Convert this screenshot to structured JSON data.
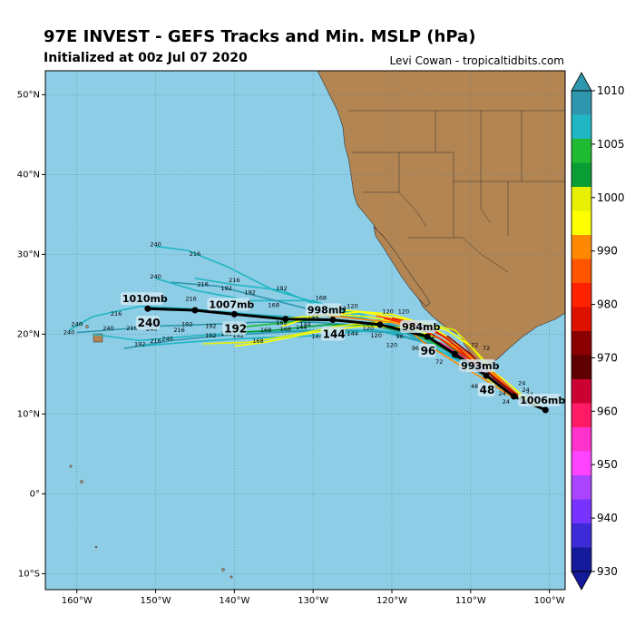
{
  "header": {
    "title": "97E INVEST - GEFS Tracks and Min. MSLP (hPa)",
    "subtitle": "Initialized at 00z Jul 07 2020",
    "credit": "Levi Cowan - tropicaltidbits.com"
  },
  "map": {
    "lon_range": [
      -164,
      -98
    ],
    "lat_range": [
      -12,
      53
    ],
    "lon_ticks": [
      "160°W",
      "150°W",
      "140°W",
      "130°W",
      "120°W",
      "110°W",
      "100°W"
    ],
    "lat_ticks": [
      "10°S",
      "0°",
      "10°N",
      "20°N",
      "30°N",
      "40°N",
      "50°N"
    ],
    "colors": {
      "ocean": "#8ecde6",
      "land": "#b38552",
      "grid": "#4f7a8f",
      "mean_track": "#000000"
    }
  },
  "colorbar": {
    "ticks": [
      "1010",
      "1005",
      "1000",
      "990",
      "980",
      "970",
      "960",
      "950",
      "940",
      "930"
    ],
    "bands": [
      "#2f97ad",
      "#20b6c3",
      "#1fbb33",
      "#0a9d33",
      "#e6f000",
      "#ffff00",
      "#ff8800",
      "#ff5500",
      "#ff2200",
      "#dd1100",
      "#8a0000",
      "#5e0000",
      "#cc0033",
      "#ff1a66",
      "#ff33cc",
      "#ff44ff",
      "#aa44ff",
      "#7733ff",
      "#3c2bd6",
      "#141a9a"
    ]
  },
  "mean_track": {
    "points": [
      {
        "lon": -100.5,
        "lat": 10.5
      },
      {
        "lon": -104.5,
        "lat": 12.2
      },
      {
        "lon": -108.0,
        "lat": 14.8
      },
      {
        "lon": -112.0,
        "lat": 17.5
      },
      {
        "lon": -115.5,
        "lat": 19.7
      },
      {
        "lon": -121.5,
        "lat": 21.2
      },
      {
        "lon": -127.5,
        "lat": 21.8
      },
      {
        "lon": -133.5,
        "lat": 21.9
      },
      {
        "lon": -140.0,
        "lat": 22.5
      },
      {
        "lon": -145.0,
        "lat": 23.0
      },
      {
        "lon": -151.0,
        "lat": 23.2
      }
    ],
    "labels": [
      {
        "pressure": "1006mb",
        "hour": "",
        "lon": -100.5,
        "lat": 10.5
      },
      {
        "pressure": "993mb",
        "hour": "48",
        "lon": -108.0,
        "lat": 14.8
      },
      {
        "pressure": "984mb",
        "hour": "96",
        "lon": -115.5,
        "lat": 19.7
      },
      {
        "pressure": "998mb",
        "hour": "144",
        "lon": -127.5,
        "lat": 21.8
      },
      {
        "pressure": "1007mb",
        "hour": "192",
        "lon": -140.0,
        "lat": 22.5
      },
      {
        "pressure": "1010mb",
        "hour": "240",
        "lon": -151.0,
        "lat": 23.2
      }
    ]
  },
  "member_tracks": [
    {
      "color": "#20b6c3",
      "points": [
        [
          -104.5,
          12.2
        ],
        [
          -108.5,
          15
        ],
        [
          -115,
          18.5
        ],
        [
          -122,
          22
        ],
        [
          -128,
          23.5
        ],
        [
          -135,
          25.5
        ],
        [
          -141,
          28.5
        ],
        [
          -146,
          30.5
        ],
        [
          -150,
          31
        ]
      ]
    },
    {
      "color": "#20b6c3",
      "points": [
        [
          -104.5,
          12.2
        ],
        [
          -108.5,
          15
        ],
        [
          -115,
          19
        ],
        [
          -122,
          21.5
        ],
        [
          -128,
          23
        ],
        [
          -134,
          25.5
        ],
        [
          -140,
          26.2
        ],
        [
          -145,
          27.0
        ]
      ]
    },
    {
      "color": "#20b6c3",
      "points": [
        [
          -104.5,
          12.2
        ],
        [
          -109,
          15.5
        ],
        [
          -116,
          19.5
        ],
        [
          -122,
          21.5
        ],
        [
          -130,
          24.2
        ],
        [
          -138,
          24.2
        ],
        [
          -145,
          25.5
        ],
        [
          -150,
          27
        ]
      ]
    },
    {
      "color": "#2f97ad",
      "points": [
        [
          -104.5,
          12.2
        ],
        [
          -108,
          15
        ],
        [
          -114,
          19.5
        ],
        [
          -121,
          21.5
        ],
        [
          -128,
          22.5
        ],
        [
          -136,
          24.5
        ],
        [
          -142,
          26
        ],
        [
          -148,
          26.5
        ]
      ]
    },
    {
      "color": "#20b6c3",
      "points": [
        [
          -105,
          12.5
        ],
        [
          -109,
          15.5
        ],
        [
          -115,
          19.5
        ],
        [
          -122,
          21.2
        ],
        [
          -130,
          22
        ],
        [
          -138,
          22.5
        ],
        [
          -146,
          23.2
        ],
        [
          -152,
          23.5
        ],
        [
          -158,
          22.2
        ],
        [
          -161,
          20.5
        ]
      ]
    },
    {
      "color": "#2f97ad",
      "points": [
        [
          -105,
          12.5
        ],
        [
          -109,
          15.2
        ],
        [
          -115,
          19.2
        ],
        [
          -122,
          21.0
        ],
        [
          -130,
          21.5
        ],
        [
          -137,
          21.5
        ],
        [
          -144,
          21.2
        ],
        [
          -150,
          21.0
        ],
        [
          -156,
          20.5
        ],
        [
          -160,
          20.2
        ]
      ]
    },
    {
      "color": "#20b6c3",
      "points": [
        [
          -105,
          12.5
        ],
        [
          -109,
          15.5
        ],
        [
          -116,
          19
        ],
        [
          -122,
          20.5
        ],
        [
          -131,
          20.5
        ],
        [
          -139,
          20.2
        ],
        [
          -145,
          19.8
        ],
        [
          -152,
          19.2
        ],
        [
          -158,
          20.0
        ]
      ]
    },
    {
      "color": "#2f97ad",
      "points": [
        [
          -104.5,
          12.3
        ],
        [
          -109,
          15.2
        ],
        [
          -114,
          18.5
        ],
        [
          -120,
          20.2
        ],
        [
          -127,
          20.5
        ],
        [
          -135,
          20.2
        ],
        [
          -142,
          19.8
        ],
        [
          -148,
          19.2
        ],
        [
          -154,
          18.2
        ]
      ]
    },
    {
      "color": "#20b6c3",
      "points": [
        [
          -104,
          12
        ],
        [
          -110,
          16.5
        ],
        [
          -116,
          19.8
        ],
        [
          -122,
          20.5
        ],
        [
          -130,
          19.8
        ],
        [
          -138,
          19.5
        ],
        [
          -146,
          19.0
        ],
        [
          -152,
          18.5
        ]
      ]
    },
    {
      "color": "#1fbb33",
      "points": [
        [
          -104.5,
          12.3
        ],
        [
          -110,
          16.5
        ],
        [
          -117,
          20.0
        ],
        [
          -124,
          21.5
        ],
        [
          -130,
          21.8
        ],
        [
          -136,
          21.2
        ],
        [
          -140,
          20.8
        ]
      ]
    },
    {
      "color": "#0a9d33",
      "points": [
        [
          -104,
          12.2
        ],
        [
          -108,
          15
        ],
        [
          -114,
          19.5
        ],
        [
          -120,
          21.0
        ],
        [
          -128,
          21.2
        ],
        [
          -135,
          20.5
        ],
        [
          -140,
          20.2
        ]
      ]
    },
    {
      "color": "#ffff00",
      "points": [
        [
          -100.5,
          10.5
        ],
        [
          -103,
          12
        ],
        [
          -106,
          14.5
        ],
        [
          -110,
          17
        ],
        [
          -114,
          19.5
        ],
        [
          -118,
          21.2
        ],
        [
          -123,
          22.2
        ],
        [
          -128,
          22.5
        ],
        [
          -133,
          22.0
        ]
      ]
    },
    {
      "color": "#ffff00",
      "points": [
        [
          -103,
          11.5
        ],
        [
          -107,
          15
        ],
        [
          -110,
          18.5
        ],
        [
          -113,
          20.5
        ],
        [
          -118,
          21.8
        ],
        [
          -124,
          22.8
        ],
        [
          -130,
          22.2
        ],
        [
          -134,
          21.0
        ]
      ]
    },
    {
      "color": "#ffff00",
      "points": [
        [
          -104,
          12.0
        ],
        [
          -108,
          14.5
        ],
        [
          -110,
          16.5
        ],
        [
          -112,
          19.0
        ],
        [
          -115,
          21.0
        ],
        [
          -120,
          22.5
        ],
        [
          -126,
          23.0
        ]
      ]
    },
    {
      "color": "#ffff00",
      "points": [
        [
          -104,
          12.5
        ],
        [
          -109,
          16.5
        ],
        [
          -114,
          19.5
        ],
        [
          -118,
          20.8
        ],
        [
          -124,
          21.0
        ],
        [
          -130,
          20.2
        ],
        [
          -136,
          19.0
        ],
        [
          -140,
          18.5
        ]
      ]
    },
    {
      "color": "#e6f000",
      "points": [
        [
          -102,
          11
        ],
        [
          -106,
          14
        ],
        [
          -109,
          17.5
        ],
        [
          -112,
          20.5
        ],
        [
          -116,
          21.5
        ],
        [
          -122,
          21.5
        ],
        [
          -127,
          21.0
        ],
        [
          -132,
          20.0
        ],
        [
          -138,
          19.0
        ],
        [
          -144,
          18.8
        ]
      ]
    },
    {
      "color": "#ff8800",
      "points": [
        [
          -104,
          12.3
        ],
        [
          -108,
          15.5
        ],
        [
          -112,
          18.5
        ],
        [
          -116,
          20.5
        ],
        [
          -120,
          21.5
        ],
        [
          -125,
          22.0
        ],
        [
          -130,
          22.5
        ]
      ]
    },
    {
      "color": "#ff8800",
      "points": [
        [
          -104.5,
          12.0
        ],
        [
          -108.5,
          14.5
        ],
        [
          -112,
          16.5
        ],
        [
          -116,
          19.0
        ],
        [
          -119,
          21.5
        ]
      ]
    },
    {
      "color": "#ff5500",
      "points": [
        [
          -104,
          12.4
        ],
        [
          -107.5,
          15.5
        ],
        [
          -111,
          18.0
        ],
        [
          -114,
          20.0
        ],
        [
          -118,
          21.5
        ],
        [
          -122,
          22.3
        ]
      ]
    },
    {
      "color": "#ff2200",
      "points": [
        [
          -105,
          13.0
        ],
        [
          -108,
          15.5
        ],
        [
          -111,
          17.5
        ],
        [
          -114,
          19.5
        ],
        [
          -117,
          21.0
        ],
        [
          -121,
          22.0
        ]
      ]
    },
    {
      "color": "#dd1100",
      "points": [
        [
          -104,
          12.2
        ],
        [
          -107,
          14.0
        ],
        [
          -110,
          16.8
        ],
        [
          -113,
          19.5
        ],
        [
          -116,
          21.2
        ],
        [
          -120,
          22.0
        ]
      ]
    },
    {
      "color": "#8a0000",
      "points": [
        [
          -104,
          12.3
        ],
        [
          -107,
          14.5
        ],
        [
          -110,
          17.5
        ],
        [
          -113,
          19.8
        ]
      ]
    },
    {
      "color": "#ff1a66",
      "points": [
        [
          -104,
          12.0
        ],
        [
          -107.5,
          14.6
        ],
        [
          -111,
          17.2
        ],
        [
          -114,
          19.0
        ]
      ]
    }
  ],
  "hour_marks": [
    {
      "text": "240",
      "lon": -150,
      "lat": 31.0
    },
    {
      "text": "216",
      "lon": -145,
      "lat": 29.8
    },
    {
      "text": "240",
      "lon": -150,
      "lat": 27.0
    },
    {
      "text": "216",
      "lon": -144,
      "lat": 26.0
    },
    {
      "text": "216",
      "lon": -140,
      "lat": 26.5
    },
    {
      "text": "192",
      "lon": -134,
      "lat": 25.5
    },
    {
      "text": "192",
      "lon": -141,
      "lat": 25.5
    },
    {
      "text": "192",
      "lon": -138,
      "lat": 25.0
    },
    {
      "text": "168",
      "lon": -129,
      "lat": 24.3
    },
    {
      "text": "168",
      "lon": -135,
      "lat": 23.4
    },
    {
      "text": "216",
      "lon": -145.5,
      "lat": 24.2
    },
    {
      "text": "240",
      "lon": -152.5,
      "lat": 23.8
    },
    {
      "text": "216",
      "lon": -155,
      "lat": 22.3
    },
    {
      "text": "240",
      "lon": -160,
      "lat": 21.0
    },
    {
      "text": "240",
      "lon": -161,
      "lat": 20.0
    },
    {
      "text": "216",
      "lon": -153,
      "lat": 20.5
    },
    {
      "text": "240",
      "lon": -156,
      "lat": 20.5
    },
    {
      "text": "192",
      "lon": -146,
      "lat": 21.0
    },
    {
      "text": "192",
      "lon": -143,
      "lat": 20.8
    },
    {
      "text": "216",
      "lon": -147,
      "lat": 20.3
    },
    {
      "text": "240",
      "lon": -150.5,
      "lat": 20.4
    },
    {
      "text": "216",
      "lon": -150,
      "lat": 18.9
    },
    {
      "text": "240",
      "lon": -148.5,
      "lat": 19.2
    },
    {
      "text": "192",
      "lon": -152,
      "lat": 18.5
    },
    {
      "text": "192",
      "lon": -143,
      "lat": 19.6
    },
    {
      "text": "168",
      "lon": -141,
      "lat": 19.8
    },
    {
      "text": "192",
      "lon": -139.5,
      "lat": 19.6
    },
    {
      "text": "168",
      "lon": -137,
      "lat": 18.9
    },
    {
      "text": "168",
      "lon": -136,
      "lat": 20.3
    },
    {
      "text": "168",
      "lon": -134,
      "lat": 21.2
    },
    {
      "text": "144",
      "lon": -131,
      "lat": 21.0
    },
    {
      "text": "144",
      "lon": -129.5,
      "lat": 19.5
    },
    {
      "text": "144",
      "lon": -131.5,
      "lat": 20.6
    },
    {
      "text": "168",
      "lon": -133.5,
      "lat": 20.4
    },
    {
      "text": "144",
      "lon": -130,
      "lat": 22.0
    },
    {
      "text": "120",
      "lon": -125,
      "lat": 23.3
    },
    {
      "text": "120",
      "lon": -120.5,
      "lat": 22.6
    },
    {
      "text": "120",
      "lon": -118.5,
      "lat": 22.6
    },
    {
      "text": "144",
      "lon": -126.5,
      "lat": 23.0
    },
    {
      "text": "120",
      "lon": -123,
      "lat": 20.5
    },
    {
      "text": "144",
      "lon": -125,
      "lat": 19.8
    },
    {
      "text": "120",
      "lon": -122,
      "lat": 19.6
    },
    {
      "text": "120",
      "lon": -120,
      "lat": 18.4
    },
    {
      "text": "96",
      "lon": -117,
      "lat": 18.0
    },
    {
      "text": "72",
      "lon": -115,
      "lat": 19.5
    },
    {
      "text": "96",
      "lon": -119,
      "lat": 19.5
    },
    {
      "text": "72",
      "lon": -112,
      "lat": 17.0
    },
    {
      "text": "72",
      "lon": -114,
      "lat": 16.3
    },
    {
      "text": "72",
      "lon": -111,
      "lat": 15.3
    },
    {
      "text": "72",
      "lon": -109.5,
      "lat": 18.4
    },
    {
      "text": "72",
      "lon": -108,
      "lat": 18.0
    },
    {
      "text": "48",
      "lon": -109.5,
      "lat": 13.2
    },
    {
      "text": "48",
      "lon": -108.8,
      "lat": 15.8
    },
    {
      "text": "24",
      "lon": -105.5,
      "lat": 11.3
    },
    {
      "text": "24",
      "lon": -103.5,
      "lat": 13.6
    },
    {
      "text": "24",
      "lon": -103,
      "lat": 12.8
    },
    {
      "text": "24",
      "lon": -102.5,
      "lat": 12.2
    },
    {
      "text": "24",
      "lon": -106,
      "lat": 12.3
    }
  ]
}
